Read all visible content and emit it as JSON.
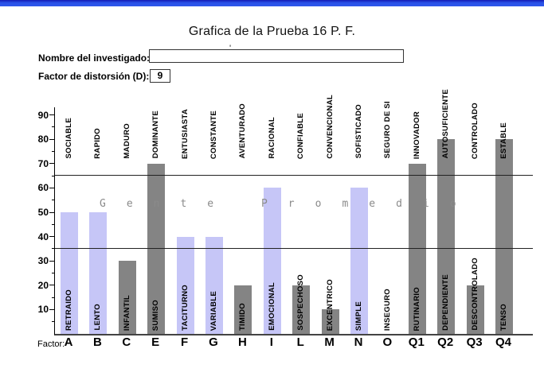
{
  "titlebar": {
    "accent_color": "#2a52e8"
  },
  "header": {
    "title": "Grafica de la Prueba 16 P. F."
  },
  "form": {
    "name_label": "Nombre del investigado:",
    "name_value": "",
    "stray_mark": "'",
    "distortion_label": "Factor de distorsión (D):",
    "distortion_value": "9"
  },
  "chart_data": {
    "type": "bar",
    "title": "Grafica de la Prueba 16 P. F.",
    "xlabel": "Factor:",
    "ylabel": "",
    "ylim": [
      0,
      93
    ],
    "yticks": [
      10,
      20,
      30,
      40,
      50,
      60,
      70,
      80,
      90
    ],
    "minor_tick_step": 5,
    "grid": false,
    "legend": false,
    "reference_lines": [
      35,
      65
    ],
    "overlay_text": "Gente Promedio",
    "categories": [
      "A",
      "B",
      "C",
      "E",
      "F",
      "G",
      "H",
      "I",
      "L",
      "M",
      "N",
      "O",
      "Q1",
      "Q2",
      "Q3",
      "Q4"
    ],
    "values": [
      50,
      50,
      30,
      70,
      40,
      40,
      20,
      60,
      20,
      10,
      60,
      0,
      70,
      80,
      20,
      80
    ],
    "bar_colors": [
      "#c6c6f7",
      "#c6c6f7",
      "#848484",
      "#848484",
      "#c6c6f7",
      "#c6c6f7",
      "#848484",
      "#c6c6f7",
      "#848484",
      "#848484",
      "#c6c6f7",
      null,
      "#848484",
      "#848484",
      "#848484",
      "#848484"
    ],
    "high_pole_labels": [
      "SOCIABLE",
      "RAPIDO",
      "MADURO",
      "DOMINANTE",
      "ENTUSIASTA",
      "CONSTANTE",
      "AVENTURADO",
      "RACIONAL",
      "CONFIABLE",
      "CONVENCIONAL",
      "SOFISTICADO",
      "SEGURO DE SI",
      "INNOVADOR",
      "AUTOSUFICIENTE",
      "CONTROLADO",
      "ESTABLE"
    ],
    "low_pole_labels": [
      "RETRAIDO",
      "LENTO",
      "INFANTIL",
      "SUMISO",
      "TACITURNO",
      "VARIABLE",
      "TIMIDO",
      "EMOCIONAL",
      "SOSPECHOSO",
      "EXCENTRICO",
      "SIMPLE",
      "INSEGURO",
      "RUTINARIO",
      "DEPENDIENTE",
      "DESCONTROLADO",
      "TENSO"
    ],
    "colors": {
      "low_pole_bar": "#c6c6f7",
      "high_pole_bar": "#848484",
      "overlay_text": "#8a8a8a"
    }
  }
}
